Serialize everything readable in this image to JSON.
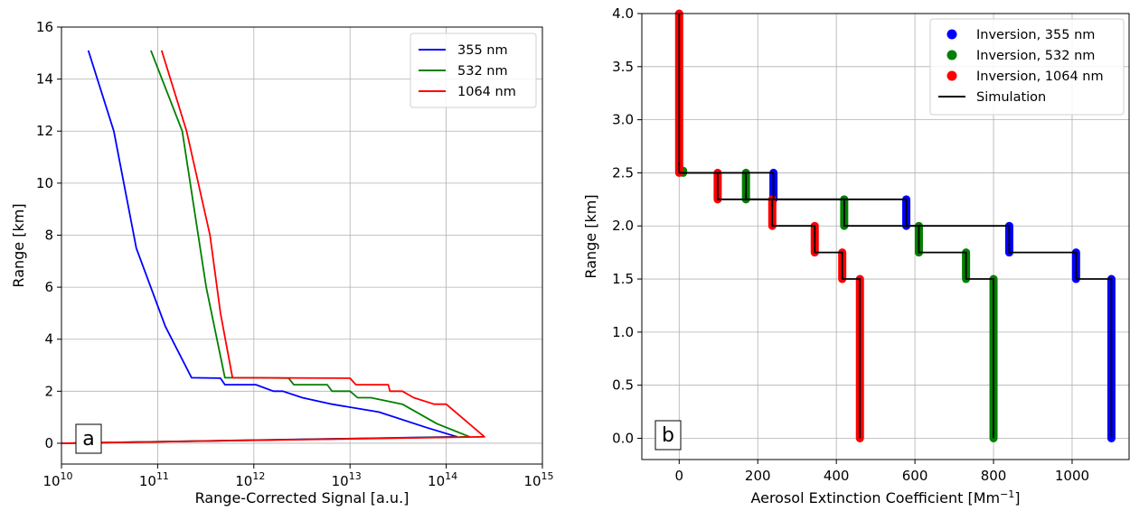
{
  "chart_data": [
    {
      "type": "line",
      "panel_label": "a",
      "xlabel": "Range-Corrected Signal [a.u.]",
      "ylabel": "Range [km]",
      "xscale": "log",
      "xlim": [
        10000000000.0,
        1000000000000000.0
      ],
      "ylim": [
        -0.8,
        16
      ],
      "x_tick_labels": [
        "10",
        "10",
        "10",
        "10",
        "10",
        "10"
      ],
      "x_tick_exponents": [
        "10",
        "11",
        "12",
        "13",
        "14",
        "15"
      ],
      "x_ticks": [
        10000000000.0,
        100000000000.0,
        1000000000000.0,
        10000000000000.0,
        100000000000000.0,
        1000000000000000.0
      ],
      "y_ticks": [
        0,
        2,
        4,
        6,
        8,
        10,
        12,
        14,
        16
      ],
      "y_tick_labels": [
        "0",
        "2",
        "4",
        "6",
        "8",
        "10",
        "12",
        "14",
        "16"
      ],
      "grid": true,
      "legend_position": "top-right",
      "series": [
        {
          "name": "355 nm",
          "color": "#0000ff",
          "x": [
            10000000000.0,
            130000000000000.0,
            63000000000000.0,
            20000000000000.0,
            6500000000000.0,
            3200000000000.0,
            2000000000000.0,
            1600000000000.0,
            1050000000000.0,
            500000000000.0,
            450000000000.0,
            225000000000.0,
            120000000000.0,
            60000000000.0,
            35000000000.0,
            19000000000.0
          ],
          "y": [
            0,
            0.25,
            0.6,
            1.2,
            1.5,
            1.75,
            2.0,
            2.0,
            2.25,
            2.25,
            2.5,
            2.52,
            4.5,
            7.5,
            12,
            15.1
          ]
        },
        {
          "name": "532 nm",
          "color": "#008000",
          "x": [
            10000000000.0,
            175000000000000.0,
            80000000000000.0,
            35000000000000.0,
            16500000000000.0,
            12000000000000.0,
            10000000000000.0,
            6500000000000.0,
            5800000000000.0,
            2600000000000.0,
            2300000000000.0,
            1000000000000.0,
            500000000000.0,
            320000000000.0,
            180000000000.0,
            85000000000.0
          ],
          "y": [
            0,
            0.25,
            0.75,
            1.5,
            1.75,
            1.75,
            2.0,
            2.0,
            2.25,
            2.25,
            2.5,
            2.52,
            2.52,
            6,
            12,
            15.1
          ]
        },
        {
          "name": "1064 nm",
          "color": "#ff0000",
          "x": [
            10000000000.0,
            250000000000000.0,
            100000000000000.0,
            75000000000000.0,
            46000000000000.0,
            35000000000000.0,
            26000000000000.0,
            25000000000000.0,
            11500000000000.0,
            10000000000000.0,
            600000000000.0,
            450000000000.0,
            350000000000.0,
            200000000000.0,
            110000000000.0
          ],
          "y": [
            0,
            0.25,
            1.5,
            1.5,
            1.75,
            2.0,
            2.0,
            2.25,
            2.25,
            2.5,
            2.52,
            5,
            8,
            12,
            15.1
          ]
        }
      ]
    },
    {
      "type": "scatter",
      "panel_label": "b",
      "xlabel": "Aerosol Extinction Coefficient [Mm",
      "xlabel_sup": "−1",
      "xlabel_close": "]",
      "ylabel": "Range [km]",
      "xlim": [
        -95,
        1145
      ],
      "ylim": [
        -0.2,
        4.0
      ],
      "x_ticks": [
        0,
        200,
        400,
        600,
        800,
        1000
      ],
      "x_tick_labels": [
        "0",
        "200",
        "400",
        "600",
        "800",
        "1000"
      ],
      "y_ticks": [
        0.0,
        0.5,
        1.0,
        1.5,
        2.0,
        2.5,
        3.0,
        3.5,
        4.0
      ],
      "y_tick_labels": [
        "0.0",
        "0.5",
        "1.0",
        "1.5",
        "2.0",
        "2.5",
        "3.0",
        "3.5",
        "4.0"
      ],
      "grid": true,
      "legend_position": "top-right",
      "series": [
        {
          "name": "Inversion, 355 nm",
          "color": "#0000ff",
          "segments": [
            [
              1100,
              0.0,
              1.5
            ],
            [
              1010,
              1.5,
              1.75
            ],
            [
              840,
              1.75,
              2.0
            ],
            [
              578,
              2.0,
              2.25
            ],
            [
              240,
              2.25,
              2.5
            ]
          ]
        },
        {
          "name": "Inversion, 532 nm",
          "color": "#008000",
          "segments": [
            [
              800,
              0.0,
              1.5
            ],
            [
              730,
              1.5,
              1.75
            ],
            [
              610,
              1.75,
              2.0
            ],
            [
              420,
              2.0,
              2.25
            ],
            [
              170,
              2.25,
              2.5
            ],
            [
              10,
              2.5,
              2.52
            ]
          ]
        },
        {
          "name": "Inversion, 1064 nm",
          "color": "#ff0000",
          "segments": [
            [
              460,
              0.0,
              1.5
            ],
            [
              415,
              1.5,
              1.75
            ],
            [
              345,
              1.75,
              2.0
            ],
            [
              237,
              2.0,
              2.25
            ],
            [
              98,
              2.25,
              2.5
            ],
            [
              0,
              2.5,
              4.0
            ]
          ]
        },
        {
          "name": "Simulation",
          "color": "#000000",
          "x": [
            1100,
            1100,
            1010,
            1010,
            840,
            840,
            578,
            578,
            240,
            240,
            0,
            0
          ],
          "y": [
            0.0,
            1.5,
            1.5,
            1.75,
            1.75,
            2.0,
            2.0,
            2.25,
            2.25,
            2.5,
            2.5,
            4.0
          ]
        },
        {
          "name": "",
          "color": "#000000",
          "x": [
            800,
            800,
            730,
            730,
            610,
            610,
            420,
            420,
            170,
            170,
            0
          ],
          "y": [
            0.0,
            1.5,
            1.5,
            1.75,
            1.75,
            2.0,
            2.0,
            2.25,
            2.25,
            2.5,
            2.5
          ]
        },
        {
          "name": "",
          "color": "#000000",
          "x": [
            460,
            460,
            415,
            415,
            345,
            345,
            237,
            237,
            98,
            98,
            0
          ],
          "y": [
            0.0,
            1.5,
            1.5,
            1.75,
            1.75,
            2.0,
            2.0,
            2.25,
            2.25,
            2.5,
            2.5
          ]
        }
      ]
    }
  ]
}
